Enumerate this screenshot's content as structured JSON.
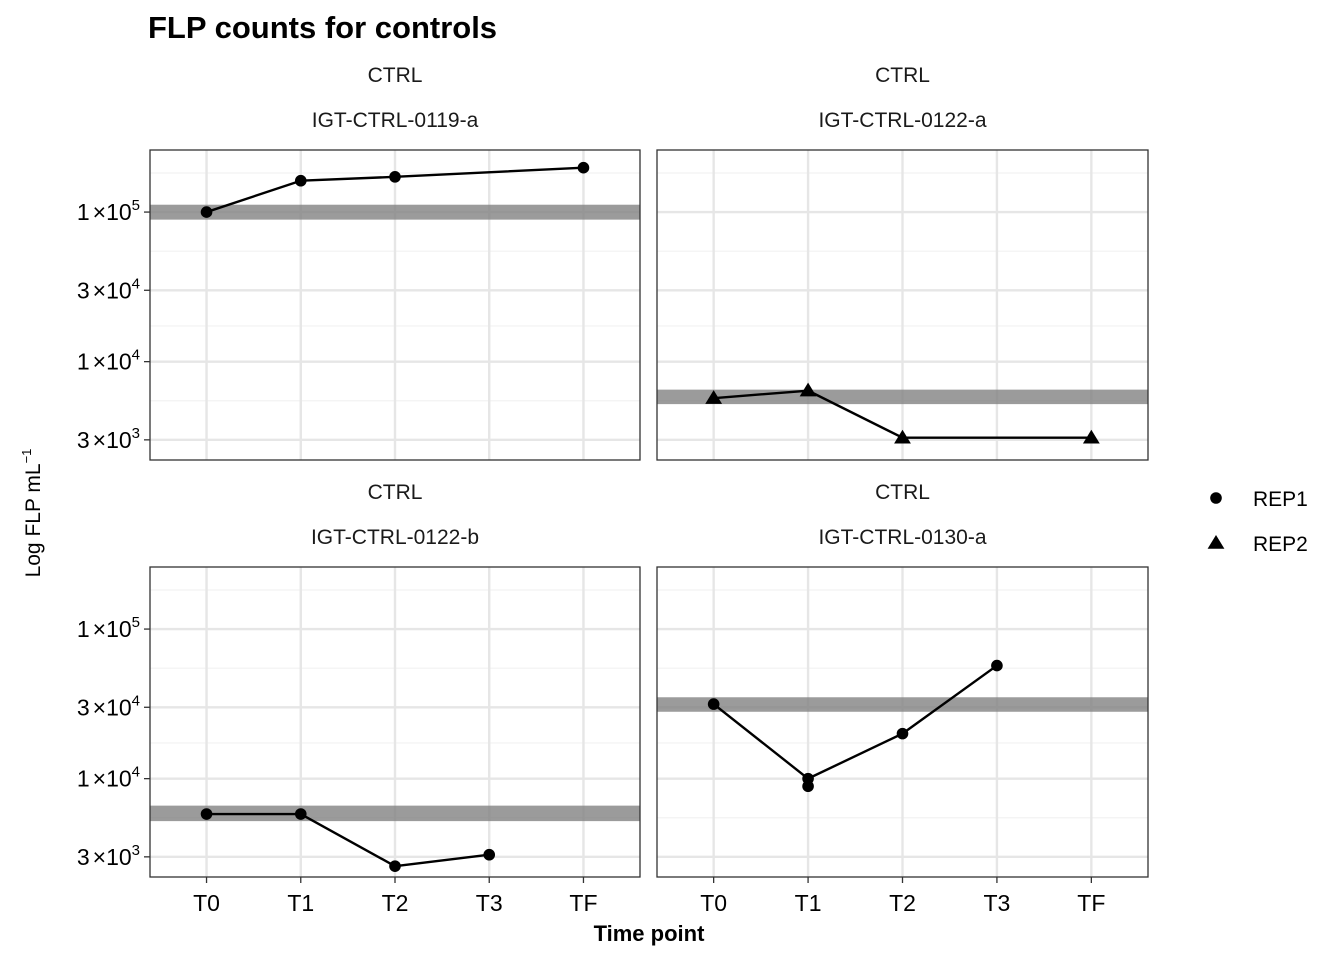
{
  "chart_data": {
    "type": "line",
    "title": "FLP counts for controls",
    "xlabel": "Time point",
    "ylabel": "Log FLP  mL",
    "ylabel_superscript": "−1",
    "x_categories": [
      "T0",
      "T1",
      "T2",
      "T3",
      "TF"
    ],
    "y_scale": "log10",
    "ylim": [
      2200,
      260000
    ],
    "y_ticks": [
      {
        "value": 3000,
        "mantissa": "3",
        "exponent": "3"
      },
      {
        "value": 10000,
        "mantissa": "1",
        "exponent": "4"
      },
      {
        "value": 30000,
        "mantissa": "3",
        "exponent": "4"
      },
      {
        "value": 100000,
        "mantissa": "1",
        "exponent": "5"
      }
    ],
    "times_symbol": "×",
    "times_base": "10",
    "grid": true,
    "legend": {
      "position": "right",
      "entries": [
        {
          "label": "REP1",
          "shape": "circle"
        },
        {
          "label": "REP2",
          "shape": "triangle"
        }
      ]
    },
    "panels": [
      {
        "strip_top": "CTRL",
        "strip_bottom": "IGT-CTRL-0119-a",
        "band": [
          89000,
          112000
        ],
        "series": [
          {
            "rep": "REP1",
            "x": [
              "T0",
              "T1",
              "T2",
              "TF"
            ],
            "y": [
              100000,
              162000,
              172000,
              198000
            ]
          }
        ]
      },
      {
        "strip_top": "CTRL",
        "strip_bottom": "IGT-CTRL-0122-a",
        "band": [
          5200,
          6500
        ],
        "series": [
          {
            "rep": "REP2",
            "x": [
              "T0",
              "T1",
              "T2",
              "TF"
            ],
            "y": [
              5700,
              6400,
              3100,
              3100
            ]
          }
        ]
      },
      {
        "strip_top": "CTRL",
        "strip_bottom": "IGT-CTRL-0122-b",
        "band": [
          5200,
          6600
        ],
        "series": [
          {
            "rep": "REP1",
            "x": [
              "T0",
              "T1",
              "T2",
              "T3"
            ],
            "y": [
              5800,
              5800,
              2600,
              3100
            ]
          }
        ]
      },
      {
        "strip_top": "CTRL",
        "strip_bottom": "IGT-CTRL-0130-a",
        "band": [
          28000,
          35000
        ],
        "series": [
          {
            "rep": "REP1",
            "x": [
              "T0",
              "T1",
              "T2",
              "T3"
            ],
            "y": [
              31500,
              10000,
              20000,
              57000
            ]
          },
          {
            "rep": "REP1",
            "x": [
              "T1"
            ],
            "y": [
              8900
            ]
          }
        ]
      }
    ],
    "colors": {
      "band": "#7f7f7f",
      "grid_major": "#e6e6e6",
      "grid_minor": "#f2f2f2",
      "panel_border": "#333333",
      "points": "#000000"
    }
  }
}
